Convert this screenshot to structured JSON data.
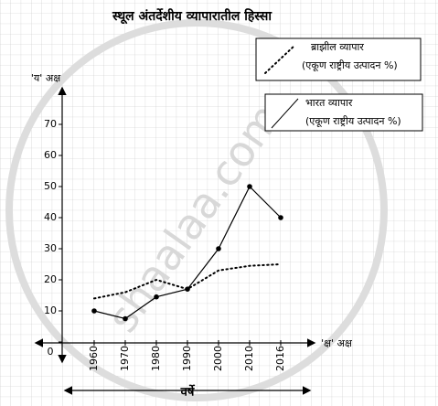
{
  "chart_data": {
    "type": "line",
    "title": "स्थूल अंतर्देशीय व्यापारातील हिस्सा",
    "y_label": "'य' अक्ष",
    "x_label": "'क्ष' अक्ष",
    "x_title": "वर्षे",
    "watermark": "shaalaa.com",
    "categories": [
      "1960",
      "1970",
      "1980",
      "1990",
      "2000",
      "2010",
      "2016"
    ],
    "series": [
      {
        "name": "ब्राझील व्यापार",
        "note": "(एकूण राष्ट्रीय उत्पादन %)",
        "color": "#000000",
        "style": "dotted",
        "markers": false,
        "values": [
          14,
          16,
          20,
          17,
          23,
          24.5,
          25
        ]
      },
      {
        "name": "भारत व्यापार",
        "note": "(एकूण राष्ट्रीय उत्पादन %)",
        "color": "#000000",
        "style": "solid",
        "markers": true,
        "values": [
          10,
          7.5,
          14.5,
          17,
          30,
          50,
          40
        ]
      }
    ],
    "ylim": [
      0,
      80
    ],
    "yticks": [
      0,
      10,
      20,
      30,
      40,
      50,
      60,
      70
    ]
  }
}
